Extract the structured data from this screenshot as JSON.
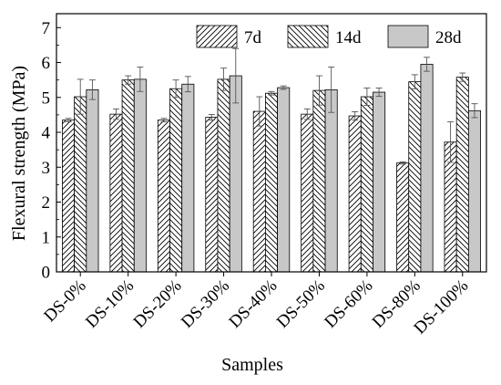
{
  "chart_data": {
    "type": "bar",
    "categories": [
      "DS-0%",
      "DS-10%",
      "DS-20%",
      "DS-30%",
      "DS-40%",
      "DS-50%",
      "DS-60%",
      "DS-80%",
      "DS-100%"
    ],
    "series": [
      {
        "name": "7d",
        "values": [
          4.35,
          4.52,
          4.35,
          4.43,
          4.6,
          4.52,
          4.47,
          3.12,
          3.72
        ],
        "errors": [
          0.05,
          0.15,
          0.05,
          0.08,
          0.42,
          0.15,
          0.12,
          0.03,
          0.58
        ],
        "pattern": "forward-hatch"
      },
      {
        "name": "14d",
        "values": [
          5.02,
          5.5,
          5.25,
          5.52,
          5.12,
          5.2,
          5.02,
          5.45,
          5.58
        ],
        "errors": [
          0.5,
          0.12,
          0.25,
          0.32,
          0.05,
          0.42,
          0.25,
          0.2,
          0.12
        ],
        "pattern": "backward-hatch"
      },
      {
        "name": "28d",
        "values": [
          5.22,
          5.52,
          5.38,
          5.62,
          5.28,
          5.22,
          5.15,
          5.95,
          4.62
        ],
        "errors": [
          0.28,
          0.35,
          0.22,
          0.78,
          0.05,
          0.65,
          0.12,
          0.2,
          0.2
        ],
        "pattern": "solid",
        "color": "#c8c8c8"
      }
    ],
    "xlabel": "Samples",
    "ylabel": "Flexural strength (MPa)",
    "ylim": [
      0,
      7.4
    ],
    "yticks": [
      0,
      1,
      2,
      3,
      4,
      5,
      6,
      7
    ],
    "legend_position": "top-right",
    "grid": false
  }
}
